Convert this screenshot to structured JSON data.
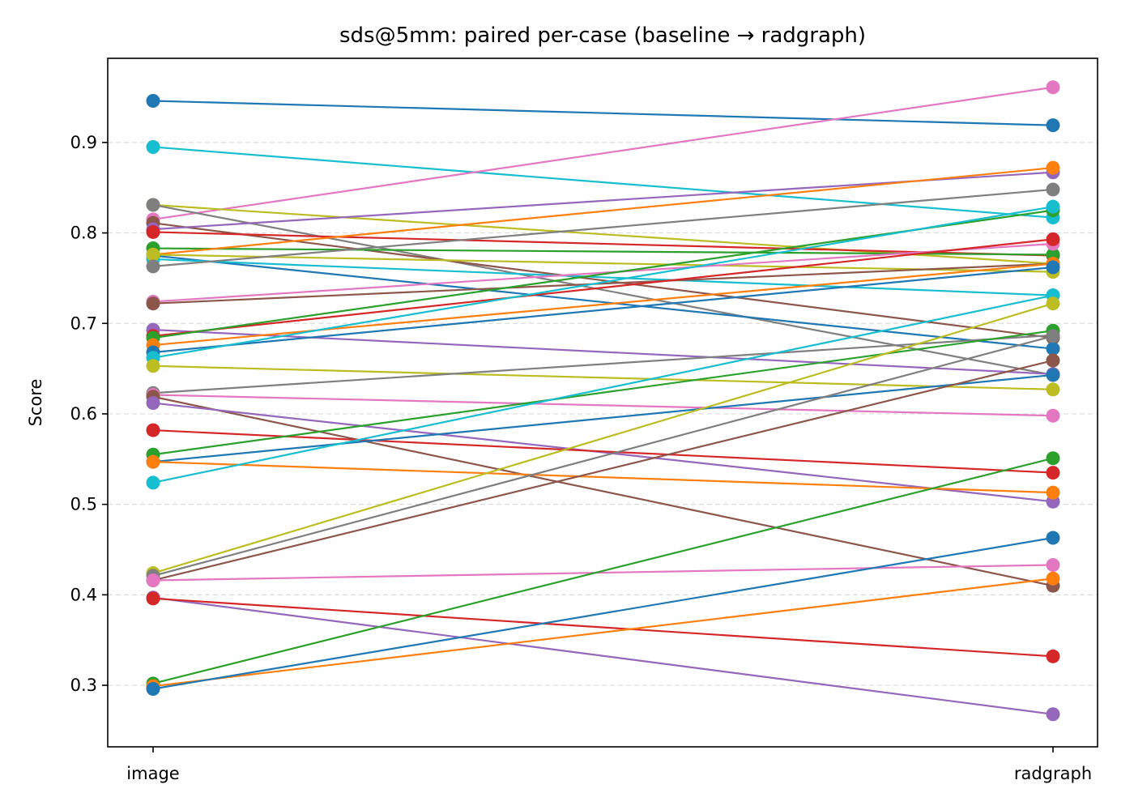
{
  "chart_data": {
    "type": "line",
    "title": "sds@5mm: paired per-case (baseline → radgraph)",
    "xlabel": "",
    "ylabel": "Score",
    "categories": [
      "image",
      "radgraph"
    ],
    "ylim": [
      0.232,
      0.993
    ],
    "yticks": [
      0.3,
      0.4,
      0.5,
      0.6,
      0.7,
      0.8,
      0.9
    ],
    "ytick_labels": [
      "0.3",
      "0.4",
      "0.5",
      "0.6",
      "0.7",
      "0.8",
      "0.9"
    ],
    "grid": "y-dashed",
    "palette": [
      "#1f77b4",
      "#ff7f0e",
      "#2ca02c",
      "#d62728",
      "#9467bd",
      "#8c564b",
      "#e377c2",
      "#7f7f7f",
      "#bcbd22",
      "#17becf"
    ],
    "series": [
      {
        "color": "#1f77b4",
        "values": [
          0.946,
          0.919
        ]
      },
      {
        "color": "#17becf",
        "values": [
          0.895,
          0.817
        ]
      },
      {
        "color": "#e377c2",
        "values": [
          0.815,
          0.961
        ]
      },
      {
        "color": "#bcbd22",
        "values": [
          0.831,
          0.766
        ]
      },
      {
        "color": "#7f7f7f",
        "values": [
          0.831,
          0.643
        ]
      },
      {
        "color": "#8c564b",
        "values": [
          0.811,
          0.684
        ]
      },
      {
        "color": "#9467bd",
        "values": [
          0.804,
          0.867
        ]
      },
      {
        "color": "#d62728",
        "values": [
          0.801,
          0.775
        ]
      },
      {
        "color": "#2ca02c",
        "values": [
          0.783,
          0.776
        ]
      },
      {
        "color": "#ff7f0e",
        "values": [
          0.776,
          0.872
        ]
      },
      {
        "color": "#1f77b4",
        "values": [
          0.775,
          0.672
        ]
      },
      {
        "color": "#17becf",
        "values": [
          0.771,
          0.731
        ]
      },
      {
        "color": "#bcbd22",
        "values": [
          0.776,
          0.757
        ]
      },
      {
        "color": "#7f7f7f",
        "values": [
          0.763,
          0.848
        ]
      },
      {
        "color": "#e377c2",
        "values": [
          0.724,
          0.788
        ]
      },
      {
        "color": "#8c564b",
        "values": [
          0.722,
          0.766
        ]
      },
      {
        "color": "#9467bd",
        "values": [
          0.693,
          0.644
        ]
      },
      {
        "color": "#d62728",
        "values": [
          0.686,
          0.793
        ]
      },
      {
        "color": "#2ca02c",
        "values": [
          0.684,
          0.825
        ]
      },
      {
        "color": "#ff7f0e",
        "values": [
          0.676,
          0.766
        ]
      },
      {
        "color": "#1f77b4",
        "values": [
          0.668,
          0.762
        ]
      },
      {
        "color": "#17becf",
        "values": [
          0.662,
          0.829
        ]
      },
      {
        "color": "#bcbd22",
        "values": [
          0.653,
          0.627
        ]
      },
      {
        "color": "#7f7f7f",
        "values": [
          0.623,
          0.687
        ]
      },
      {
        "color": "#e377c2",
        "values": [
          0.621,
          0.598
        ]
      },
      {
        "color": "#8c564b",
        "values": [
          0.619,
          0.41
        ]
      },
      {
        "color": "#9467bd",
        "values": [
          0.612,
          0.503
        ]
      },
      {
        "color": "#d62728",
        "values": [
          0.582,
          0.535
        ]
      },
      {
        "color": "#2ca02c",
        "values": [
          0.555,
          0.692
        ]
      },
      {
        "color": "#1f77b4",
        "values": [
          0.547,
          0.643
        ]
      },
      {
        "color": "#ff7f0e",
        "values": [
          0.547,
          0.513
        ]
      },
      {
        "color": "#17becf",
        "values": [
          0.524,
          0.731
        ]
      },
      {
        "color": "#bcbd22",
        "values": [
          0.424,
          0.722
        ]
      },
      {
        "color": "#7f7f7f",
        "values": [
          0.421,
          0.686
        ]
      },
      {
        "color": "#8c564b",
        "values": [
          0.416,
          0.659
        ]
      },
      {
        "color": "#e377c2",
        "values": [
          0.416,
          0.433
        ]
      },
      {
        "color": "#9467bd",
        "values": [
          0.397,
          0.268
        ]
      },
      {
        "color": "#d62728",
        "values": [
          0.396,
          0.332
        ]
      },
      {
        "color": "#2ca02c",
        "values": [
          0.302,
          0.551
        ]
      },
      {
        "color": "#ff7f0e",
        "values": [
          0.299,
          0.418
        ]
      },
      {
        "color": "#1f77b4",
        "values": [
          0.296,
          0.463
        ]
      }
    ]
  }
}
